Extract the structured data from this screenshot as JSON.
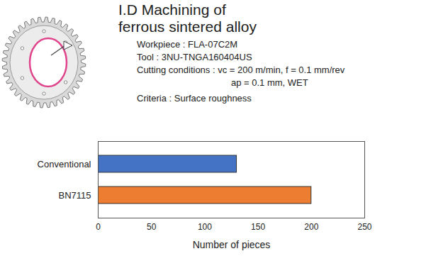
{
  "chart_data": {
    "type": "bar",
    "orientation": "horizontal",
    "title": "I.D Machining of ferrous sintered alloy",
    "annotations": [
      "Workpiece : FLA-07C2M",
      "Tool : 3NU-TNGA160404US",
      "Cutting conditions : vc = 200 m/min, f = 0.1 mm/rev",
      "ap = 0.1 mm, WET",
      "Criteria : Surface roughness"
    ],
    "categories": [
      "Conventional",
      "BN7115"
    ],
    "values": [
      130,
      200
    ],
    "colors": [
      "#4472c4",
      "#ed7d31"
    ],
    "x_label": "Number of pieces",
    "xlim": [
      0,
      250
    ],
    "xticks": [
      0,
      50,
      100,
      150,
      200,
      250
    ],
    "grid": false
  }
}
